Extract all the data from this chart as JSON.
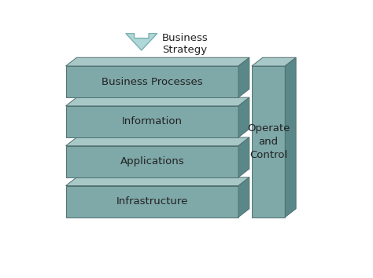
{
  "bg_color": "#ffffff",
  "box_fill_front": "#7fa8a8",
  "box_fill_top": "#a8c8c8",
  "box_fill_side": "#5a8888",
  "box_stroke": "#507070",
  "arrow_fill": "#b0d8d8",
  "arrow_stroke": "#7ab0b0",
  "layers": [
    "Business Processes",
    "Information",
    "Applications",
    "Infrastructure"
  ],
  "vertical_label": "Operate\nand\nControl",
  "arrow_label": "Business\nStrategy",
  "text_color": "#222222",
  "font_size": 9.5
}
